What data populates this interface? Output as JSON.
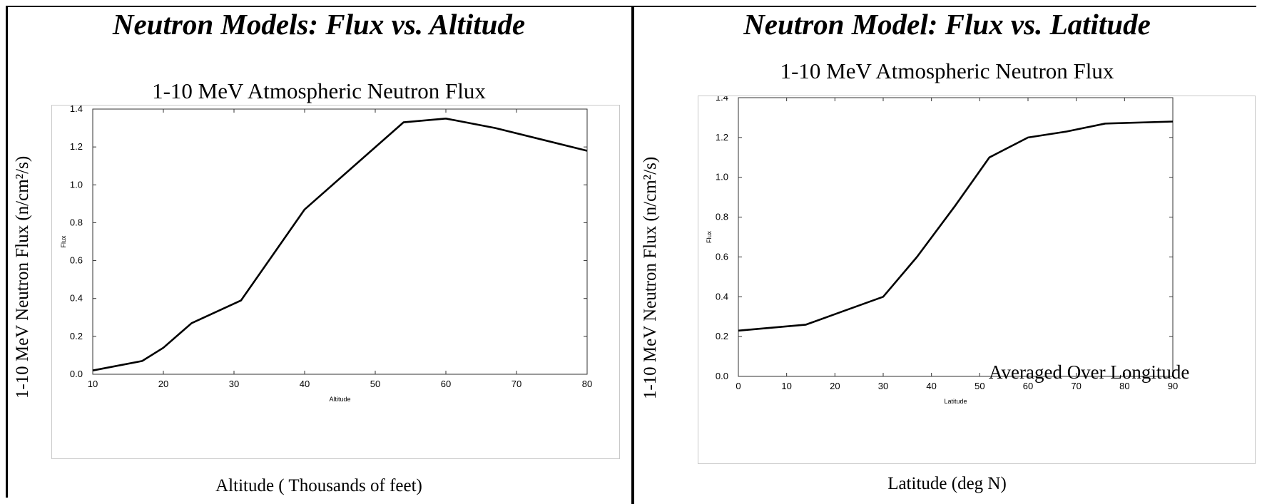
{
  "panels": {
    "left": {
      "title": "Neutron Models: Flux vs. Altitude",
      "ylabel_outer": "1-10 MeV Neutron Flux (n/cm²/s)",
      "xlabel_outer": "Altitude ( Thousands of feet)"
    },
    "right": {
      "title": "Neutron Model: Flux vs. Latitude",
      "ylabel_outer": "1-10 MeV Neutron Flux (n/cm²/s)",
      "xlabel_outer": "Latitude (deg N)"
    }
  },
  "chart_data": [
    {
      "type": "line",
      "title": "1-10 MeV Atmospheric Neutron Flux",
      "xlabel": "Altitude",
      "ylabel": "Flux",
      "x": [
        10,
        17,
        20,
        24,
        31,
        40,
        54,
        60,
        67,
        80
      ],
      "series": [
        {
          "values": [
            0.02,
            0.07,
            0.14,
            0.27,
            0.39,
            0.87,
            1.33,
            1.35,
            1.3,
            1.18
          ]
        }
      ],
      "xlim": [
        10,
        80
      ],
      "ylim": [
        0.0,
        1.4
      ],
      "xticks": [
        "10",
        "20",
        "30",
        "40",
        "50",
        "60",
        "70",
        "80"
      ],
      "yticks": [
        "0.0",
        "0.2",
        "0.4",
        "0.6",
        "0.8",
        "1.0",
        "1.2",
        "1.4"
      ],
      "grid": false,
      "line_color": "#000000"
    },
    {
      "type": "line",
      "title": "1-10 MeV Atmospheric Neutron Flux",
      "xlabel": "Latitude",
      "ylabel": "Flux",
      "x": [
        0,
        14,
        22,
        30,
        37,
        45,
        52,
        60,
        68,
        76,
        90
      ],
      "series": [
        {
          "values": [
            0.23,
            0.26,
            0.33,
            0.4,
            0.6,
            0.86,
            1.1,
            1.2,
            1.23,
            1.27,
            1.28
          ]
        }
      ],
      "xlim": [
        0,
        90
      ],
      "ylim": [
        0.0,
        1.4
      ],
      "xticks": [
        "0",
        "10",
        "20",
        "30",
        "40",
        "50",
        "60",
        "70",
        "80",
        "90"
      ],
      "yticks": [
        "0.0",
        "0.2",
        "0.4",
        "0.6",
        "0.8",
        "1.0",
        "1.2",
        "1.4"
      ],
      "annotation": "Averaged Over Longitude",
      "grid": false,
      "line_color": "#000000"
    }
  ]
}
